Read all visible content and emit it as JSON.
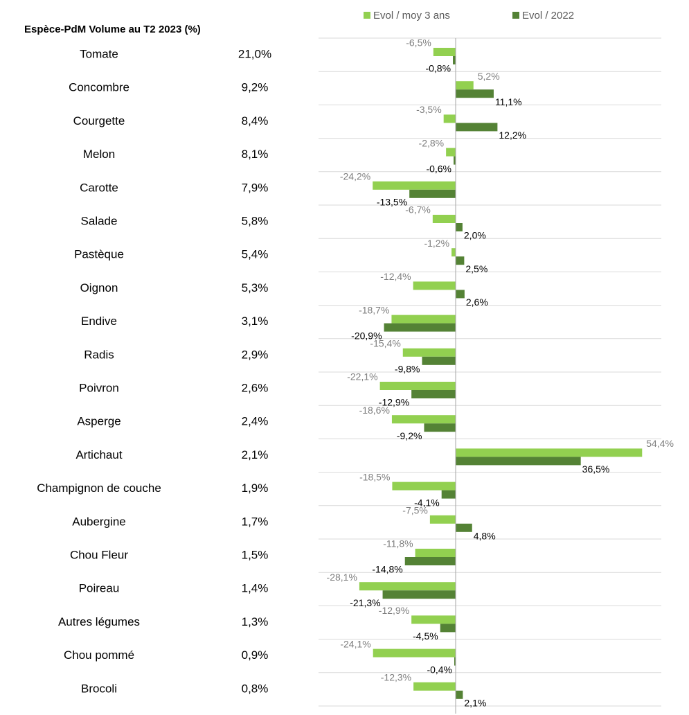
{
  "chart_data": {
    "type": "bar",
    "orientation": "horizontal",
    "table_header": "Espèce-PdM Volume au T2 2023 (%)",
    "categories": [
      "Tomate",
      "Concombre",
      "Courgette",
      "Melon",
      "Carotte",
      "Salade",
      "Pastèque",
      "Oignon",
      "Endive",
      "Radis",
      "Poivron",
      "Asperge",
      "Artichaut",
      "Champignon de couche",
      "Aubergine",
      "Chou Fleur",
      "Poireau",
      "Autres légumes",
      "Chou pommé",
      "Brocoli"
    ],
    "shares": {
      "values": [
        21.0,
        9.2,
        8.4,
        8.1,
        7.9,
        5.8,
        5.4,
        5.3,
        3.1,
        2.9,
        2.6,
        2.4,
        2.1,
        1.9,
        1.7,
        1.5,
        1.4,
        1.3,
        0.9,
        0.8
      ],
      "value_labels": [
        "21,0%",
        "9,2%",
        "8,4%",
        "8,1%",
        "7,9%",
        "5,8%",
        "5,4%",
        "5,3%",
        "3,1%",
        "2,9%",
        "2,6%",
        "2,4%",
        "2,1%",
        "1,9%",
        "1,7%",
        "1,5%",
        "1,4%",
        "1,3%",
        "0,9%",
        "0,8%"
      ]
    },
    "series": [
      {
        "name": "Evol / moy 3 ans",
        "color": "#92d050",
        "label_color": "#7f7f7f",
        "values": [
          -6.5,
          5.2,
          -3.5,
          -2.8,
          -24.2,
          -6.7,
          -1.2,
          -12.4,
          -18.7,
          -15.4,
          -22.1,
          -18.6,
          54.4,
          -18.5,
          -7.5,
          -11.8,
          -28.1,
          -12.9,
          -24.1,
          -12.3
        ],
        "value_labels": [
          "-6,5%",
          "5,2%",
          "-3,5%",
          "-2,8%",
          "-24,2%",
          "-6,7%",
          "-1,2%",
          "-12,4%",
          "-18,7%",
          "-15,4%",
          "-22,1%",
          "-18,6%",
          "54,4%",
          "-18,5%",
          "-7,5%",
          "-11,8%",
          "-28,1%",
          "-12,9%",
          "-24,1%",
          "-12,3%"
        ]
      },
      {
        "name": "Evol / 2022",
        "color": "#548235",
        "label_color": "#000000",
        "values": [
          -0.8,
          11.1,
          12.2,
          -0.6,
          -13.5,
          2.0,
          2.5,
          2.6,
          -20.9,
          -9.8,
          -12.9,
          -9.2,
          36.5,
          -4.1,
          4.8,
          -14.8,
          -21.3,
          -4.5,
          -0.4,
          2.1
        ],
        "value_labels": [
          "-0,8%",
          "11,1%",
          "12,2%",
          "-0,6%",
          "-13,5%",
          "2,0%",
          "2,5%",
          "2,6%",
          "-20,9%",
          "-9,8%",
          "-12,9%",
          "-9,2%",
          "36,5%",
          "-4,1%",
          "4,8%",
          "-14,8%",
          "-21,3%",
          "-4,5%",
          "-0,4%",
          "2,1%"
        ]
      }
    ],
    "xlim": [
      -40,
      60
    ],
    "grid": true,
    "legend": "top"
  }
}
